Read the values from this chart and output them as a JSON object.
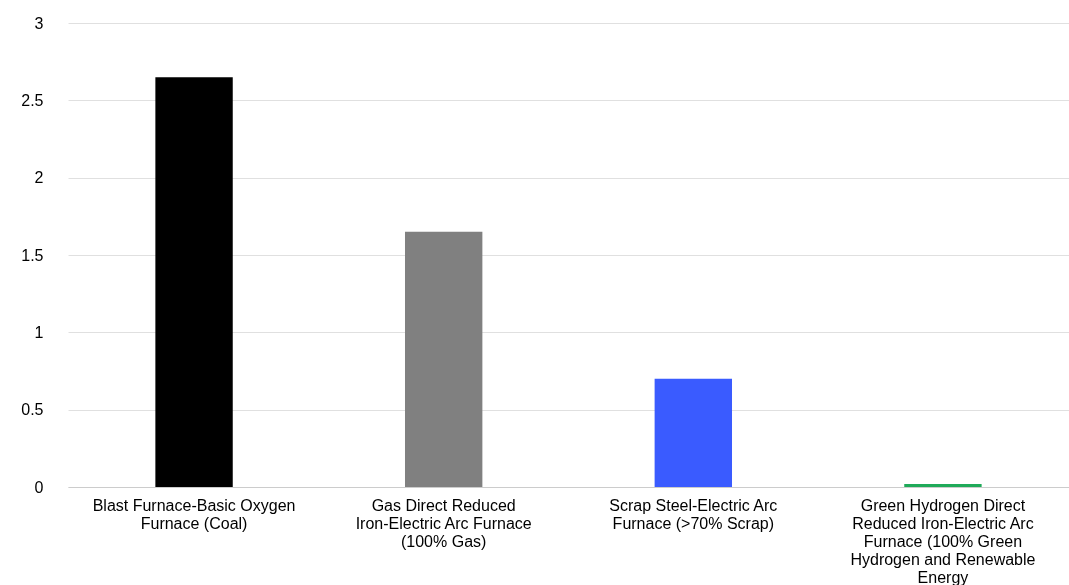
{
  "chart_data": {
    "type": "bar",
    "categories": [
      "Blast Furnace-Basic Oxygen Furnace (Coal)",
      "Gas Direct Reduced Iron-Electric Arc Furnace (100% Gas)",
      "Scrap Steel-Electric Arc Furnace (>70% Scrap)",
      "Green Hydrogen Direct Reduced Iron-Electric Arc Furnace (100% Green Hydrogen and Renewable Energy"
    ],
    "values": [
      2.65,
      1.65,
      0.7,
      0.02
    ],
    "colors": [
      "#000000",
      "#808080",
      "#3a5bff",
      "#1faa59"
    ],
    "ylim": [
      0,
      3
    ],
    "yticks": [
      0,
      0.5,
      1,
      1.5,
      2,
      2.5,
      3
    ],
    "grid": "y"
  }
}
